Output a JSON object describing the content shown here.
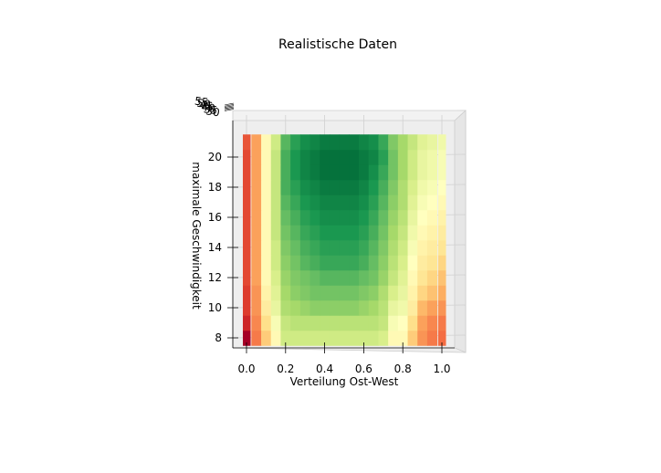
{
  "chart_data": {
    "type": "heatmap",
    "view": "3d-surface-top-down",
    "title": "Realistische Daten",
    "xlabel": "Verteilung Ost-West",
    "ylabel": "maximale Geschwindigkeit",
    "zlabel": "",
    "x_ticks": [
      "0.0",
      "0.2",
      "0.4",
      "0.6",
      "0.8",
      "1.0"
    ],
    "y_ticks": [
      "8",
      "10",
      "12",
      "14",
      "16",
      "18",
      "20"
    ],
    "z_ticks": [
      "30",
      "35",
      "40",
      "45",
      "50",
      "55"
    ],
    "xlim": [
      0.0,
      1.0
    ],
    "ylim": [
      7.5,
      21.5
    ],
    "zlim": [
      30,
      55
    ],
    "colormap": "RdYlGn",
    "colormap_colors": [
      "#a50026",
      "#d73027",
      "#f46d43",
      "#fdae61",
      "#fee08b",
      "#ffffbf",
      "#d9ef8b",
      "#a6d96a",
      "#66bd63",
      "#1a9850",
      "#006837"
    ],
    "x": [
      0.0,
      0.05,
      0.1,
      0.15,
      0.2,
      0.25,
      0.3,
      0.35,
      0.4,
      0.45,
      0.5,
      0.55,
      0.6,
      0.65,
      0.7,
      0.75,
      0.8,
      0.85,
      0.9,
      0.95,
      1.0
    ],
    "y": [
      8,
      9,
      10,
      11,
      12,
      13,
      14,
      15,
      16,
      17,
      18,
      19,
      20,
      21
    ],
    "z": [
      [
        30.0,
        35.5,
        39.0,
        42.0,
        45.5,
        45.5,
        45.5,
        45.5,
        45.5,
        45.5,
        45.5,
        45.5,
        45.5,
        45.5,
        45.0,
        42.0,
        42.0,
        39.0,
        36.5,
        35.5,
        35.0
      ],
      [
        32.0,
        36.0,
        40.0,
        43.0,
        46.0,
        46.5,
        46.5,
        46.5,
        46.5,
        46.5,
        46.5,
        46.5,
        46.5,
        46.5,
        46.0,
        43.0,
        42.5,
        40.0,
        37.0,
        36.0,
        35.5
      ],
      [
        33.0,
        36.5,
        41.0,
        44.0,
        47.0,
        47.5,
        48.0,
        48.5,
        48.5,
        48.5,
        48.5,
        48.5,
        48.0,
        47.5,
        46.5,
        44.0,
        43.5,
        41.0,
        38.0,
        37.0,
        36.5
      ],
      [
        33.0,
        36.5,
        41.5,
        44.5,
        47.5,
        48.5,
        49.0,
        49.5,
        49.5,
        49.5,
        49.5,
        49.5,
        49.0,
        48.5,
        47.0,
        45.0,
        44.0,
        41.5,
        39.5,
        38.5,
        37.5
      ],
      [
        33.5,
        37.0,
        42.0,
        45.0,
        48.0,
        49.0,
        49.5,
        50.0,
        50.5,
        50.5,
        50.5,
        50.5,
        50.0,
        49.5,
        48.0,
        46.0,
        44.5,
        42.0,
        40.5,
        39.5,
        38.5
      ],
      [
        33.5,
        37.0,
        42.0,
        45.5,
        48.5,
        49.5,
        50.5,
        51.0,
        51.5,
        51.5,
        51.5,
        51.5,
        51.0,
        50.0,
        48.5,
        46.5,
        45.0,
        42.5,
        41.0,
        40.5,
        39.5
      ],
      [
        33.5,
        37.0,
        42.0,
        45.5,
        49.0,
        50.0,
        51.0,
        51.5,
        52.0,
        52.0,
        52.0,
        52.0,
        51.5,
        50.5,
        49.0,
        47.0,
        45.5,
        43.0,
        41.5,
        41.0,
        40.5
      ],
      [
        33.5,
        37.0,
        42.0,
        46.0,
        49.5,
        50.5,
        51.5,
        52.0,
        52.5,
        52.5,
        52.5,
        52.5,
        52.0,
        51.0,
        49.5,
        47.5,
        46.0,
        43.5,
        42.0,
        41.5,
        41.0
      ],
      [
        33.5,
        37.0,
        42.0,
        46.0,
        50.0,
        51.0,
        52.0,
        52.5,
        53.0,
        53.0,
        53.0,
        53.0,
        52.5,
        51.5,
        50.0,
        48.0,
        46.5,
        44.0,
        42.5,
        42.0,
        41.5
      ],
      [
        33.5,
        37.0,
        42.0,
        46.0,
        50.5,
        51.5,
        52.5,
        53.0,
        53.5,
        53.5,
        53.5,
        53.5,
        53.0,
        52.0,
        50.5,
        48.5,
        47.0,
        44.5,
        43.0,
        42.5,
        42.0
      ],
      [
        33.5,
        37.0,
        42.0,
        46.0,
        51.0,
        52.0,
        53.0,
        53.5,
        54.0,
        54.0,
        54.0,
        54.0,
        53.5,
        52.5,
        51.0,
        49.0,
        47.0,
        45.0,
        43.5,
        43.0,
        42.5
      ],
      [
        33.5,
        37.0,
        42.0,
        46.0,
        51.0,
        52.5,
        53.5,
        54.0,
        54.5,
        54.5,
        54.5,
        54.5,
        54.0,
        53.0,
        51.5,
        49.5,
        47.5,
        45.5,
        44.0,
        43.5,
        43.0
      ],
      [
        33.5,
        37.0,
        42.0,
        46.0,
        51.0,
        52.5,
        53.5,
        54.0,
        54.5,
        54.5,
        54.5,
        54.5,
        54.0,
        53.5,
        52.0,
        49.5,
        47.5,
        45.5,
        44.0,
        43.5,
        43.0
      ],
      [
        34.0,
        37.0,
        42.0,
        45.5,
        50.5,
        52.0,
        53.0,
        53.5,
        54.0,
        54.0,
        54.0,
        54.0,
        53.5,
        53.0,
        51.5,
        49.0,
        47.5,
        46.0,
        44.5,
        44.0,
        43.5
      ]
    ],
    "grid": true,
    "legend": "none"
  }
}
